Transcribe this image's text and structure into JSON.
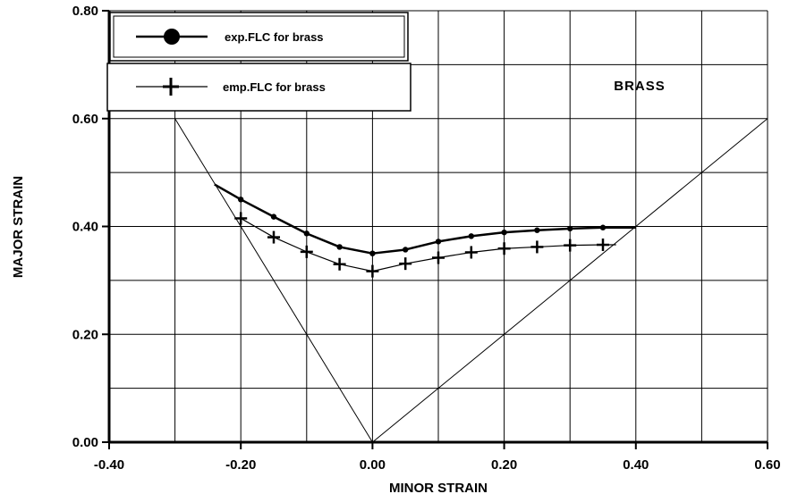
{
  "chart_data": {
    "type": "line",
    "xlabel": "MINOR STRAIN",
    "ylabel": "MAJOR STRAIN",
    "xlim": [
      -0.4,
      0.6
    ],
    "ylim": [
      0.0,
      0.8
    ],
    "x_ticks": [
      "-0.40",
      "-0.20",
      "0.00",
      "0.20",
      "0.40",
      "0.60"
    ],
    "y_ticks": [
      "0.00",
      "0.20",
      "0.40",
      "0.60",
      "0.80"
    ],
    "grid": true,
    "legend_position": "top-left",
    "annotation": "BRASS",
    "series": [
      {
        "name": "exp.FLC for brass",
        "marker": "circle",
        "line_width": "thick",
        "x": [
          -0.24,
          -0.2,
          -0.15,
          -0.1,
          -0.05,
          0.0,
          0.05,
          0.1,
          0.15,
          0.2,
          0.25,
          0.3,
          0.35,
          0.4
        ],
        "y": [
          0.478,
          0.45,
          0.418,
          0.387,
          0.362,
          0.35,
          0.357,
          0.372,
          0.382,
          0.389,
          0.393,
          0.396,
          0.398,
          0.398
        ],
        "marker_points": [
          false,
          true,
          true,
          true,
          true,
          true,
          true,
          true,
          true,
          true,
          true,
          true,
          true,
          false
        ]
      },
      {
        "name": "emp.FLC for brass",
        "marker": "plus",
        "line_width": "thin",
        "x": [
          -0.2,
          -0.15,
          -0.1,
          -0.05,
          0.0,
          0.05,
          0.1,
          0.15,
          0.2,
          0.25,
          0.3,
          0.35,
          0.37
        ],
        "y": [
          0.415,
          0.38,
          0.353,
          0.33,
          0.317,
          0.331,
          0.342,
          0.352,
          0.359,
          0.362,
          0.365,
          0.366,
          0.366
        ],
        "marker_points": [
          true,
          true,
          true,
          true,
          true,
          true,
          true,
          true,
          true,
          true,
          true,
          true,
          false
        ]
      }
    ],
    "reference_lines": [
      {
        "x": [
          -0.3,
          0.0
        ],
        "y": [
          0.6,
          0.0
        ]
      },
      {
        "x": [
          0.0,
          0.6
        ],
        "y": [
          0.0,
          0.6
        ]
      }
    ]
  }
}
